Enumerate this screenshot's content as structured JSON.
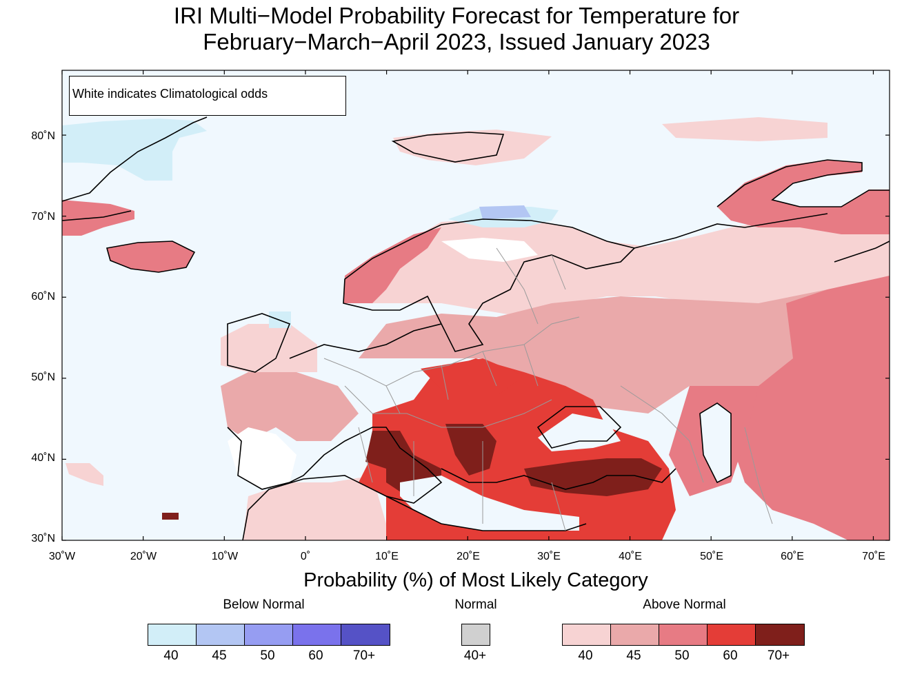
{
  "title": {
    "line1": "IRI Multi−Model Probability Forecast for Temperature for",
    "line2": "February−March−April 2023, Issued January 2023"
  },
  "map": {
    "note": "White indicates Climatological odds",
    "lat_labels": [
      "80˚N",
      "70˚N",
      "60˚N",
      "50˚N",
      "40˚N",
      "30˚N"
    ],
    "lon_labels": [
      "30˚W",
      "20˚W",
      "10˚W",
      "0˚",
      "10˚E",
      "20˚E",
      "30˚E",
      "40˚E",
      "50˚E",
      "60˚E",
      "70˚E"
    ],
    "lon_range": [
      -30,
      72
    ],
    "lat_range": [
      30,
      88
    ]
  },
  "legend": {
    "title": "Probability (%) of Most Likely Category",
    "below": {
      "label": "Below Normal",
      "ticks": [
        "40",
        "45",
        "50",
        "60",
        "70+"
      ],
      "colors": [
        "#d2eef8",
        "#b3c6f3",
        "#969df2",
        "#7a72ec",
        "#5552c6"
      ]
    },
    "normal": {
      "label": "Normal",
      "ticks": [
        "40+"
      ],
      "colors": [
        "#d0d0d0"
      ]
    },
    "above": {
      "label": "Above Normal",
      "ticks": [
        "40",
        "45",
        "50",
        "60",
        "70+"
      ],
      "colors": [
        "#f7d3d3",
        "#eaa9aa",
        "#e77b84",
        "#e43d37",
        "#7f1f1b"
      ]
    }
  }
}
